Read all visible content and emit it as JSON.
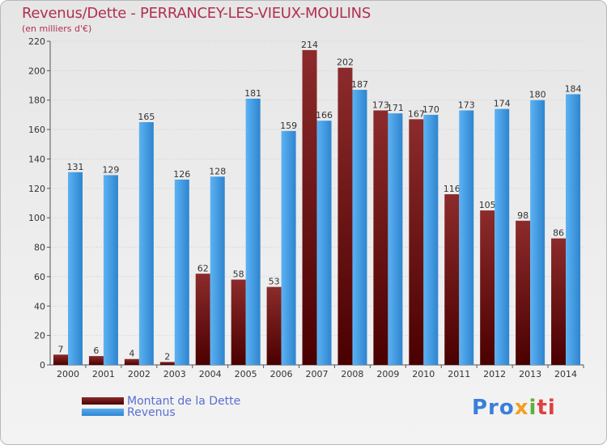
{
  "header": {
    "title": "Revenus/Dette - PERRANCEY-LES-VIEUX-MOULINS",
    "subtitle": "(en milliers d'€)"
  },
  "chart_data": {
    "type": "bar",
    "categories": [
      "2000",
      "2001",
      "2002",
      "2003",
      "2004",
      "2005",
      "2006",
      "2007",
      "2008",
      "2009",
      "2010",
      "2011",
      "2012",
      "2013",
      "2014"
    ],
    "series": [
      {
        "name": "Montant de la Dette",
        "color": "#6b1414",
        "values": [
          7,
          6,
          4,
          2,
          62,
          58,
          53,
          214,
          202,
          173,
          167,
          116,
          105,
          98,
          86
        ]
      },
      {
        "name": "Revenus",
        "color": "#3f9be4",
        "values": [
          131,
          129,
          165,
          126,
          128,
          181,
          159,
          166,
          187,
          171,
          170,
          173,
          174,
          180,
          184
        ]
      }
    ],
    "ylim": [
      0,
      220
    ],
    "yticks": [
      0,
      20,
      40,
      60,
      80,
      100,
      120,
      140,
      160,
      180,
      200,
      220
    ],
    "grid": true,
    "xlabel": "",
    "ylabel": ""
  },
  "legend": {
    "items": [
      {
        "label": "Montant de la Dette"
      },
      {
        "label": "Revenus"
      }
    ]
  },
  "logo": {
    "parts": [
      "Pro",
      "x",
      "i",
      "ti"
    ]
  }
}
